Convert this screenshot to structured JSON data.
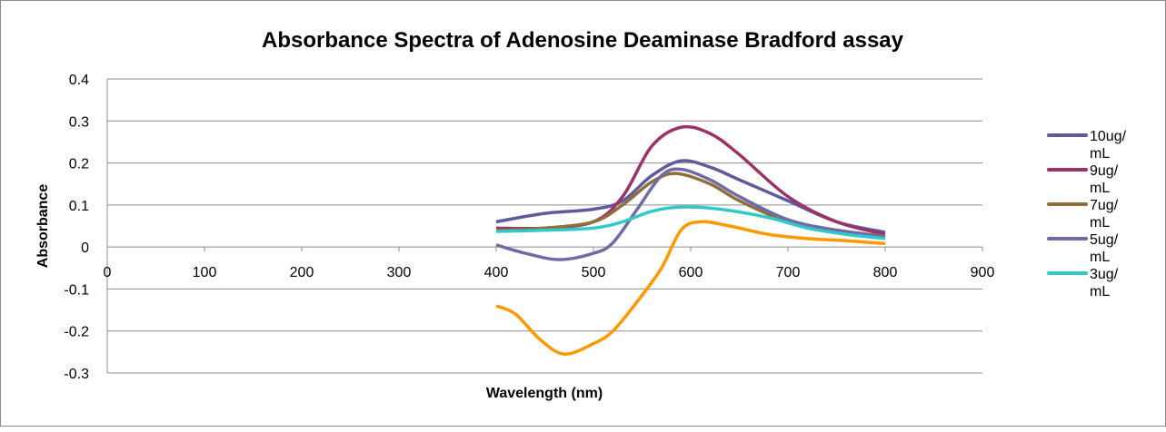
{
  "chart_data": {
    "type": "line",
    "title": "Absorbance Spectra of Adenosine Deaminase Bradford assay",
    "xlabel": "Wavelength (nm)",
    "ylabel": "Absorbance",
    "xlim": [
      0,
      900
    ],
    "ylim": [
      -0.3,
      0.4
    ],
    "xticks": [
      "0",
      "100",
      "200",
      "300",
      "400",
      "500",
      "600",
      "700",
      "800",
      "900"
    ],
    "xtick_values": [
      0,
      100,
      200,
      300,
      400,
      500,
      600,
      700,
      800,
      900
    ],
    "yticks": [
      "0.4",
      "0.3",
      "0.2",
      "0.1",
      "0",
      "-0.1",
      "-0.2",
      "-0.3"
    ],
    "ytick_values": [
      0.4,
      0.3,
      0.2,
      0.1,
      0,
      -0.1,
      -0.2,
      -0.3
    ],
    "grid": "horizontal",
    "legend_position": "right",
    "series": [
      {
        "name_line1": "10ug/",
        "name_line2": "mL",
        "in_legend": true,
        "color": "#5d5b9c",
        "x": [
          400,
          450,
          500,
          530,
          560,
          590,
          620,
          650,
          700,
          750,
          800
        ],
        "y": [
          0.06,
          0.08,
          0.09,
          0.11,
          0.17,
          0.205,
          0.19,
          0.16,
          0.11,
          0.06,
          0.035
        ]
      },
      {
        "name_line1": "9ug/",
        "name_line2": "mL",
        "in_legend": true,
        "color": "#9b3366",
        "x": [
          400,
          450,
          500,
          530,
          560,
          590,
          620,
          650,
          700,
          750,
          800
        ],
        "y": [
          0.045,
          0.045,
          0.06,
          0.12,
          0.24,
          0.285,
          0.27,
          0.22,
          0.12,
          0.06,
          0.03
        ]
      },
      {
        "name_line1": "7ug/",
        "name_line2": "mL",
        "in_legend": true,
        "color": "#8e6e3c",
        "x": [
          400,
          450,
          500,
          530,
          560,
          585,
          620,
          650,
          700,
          750,
          800
        ],
        "y": [
          0.04,
          0.045,
          0.06,
          0.1,
          0.155,
          0.175,
          0.15,
          0.11,
          0.06,
          0.04,
          0.025
        ]
      },
      {
        "name_line1": "5ug/",
        "name_line2": "mL",
        "in_legend": true,
        "color": "#6f6ba7",
        "x": [
          400,
          430,
          465,
          500,
          520,
          545,
          570,
          590,
          620,
          650,
          700,
          750,
          800
        ],
        "y": [
          0.005,
          -0.015,
          -0.03,
          -0.015,
          0.01,
          0.09,
          0.17,
          0.185,
          0.16,
          0.12,
          0.065,
          0.04,
          0.025
        ]
      },
      {
        "name_line1": "3ug/",
        "name_line2": "mL",
        "in_legend": true,
        "color": "#33c9c9",
        "x": [
          400,
          450,
          500,
          530,
          560,
          590,
          630,
          680,
          720,
          760,
          800
        ],
        "y": [
          0.037,
          0.04,
          0.045,
          0.06,
          0.085,
          0.095,
          0.09,
          0.07,
          0.045,
          0.03,
          0.02
        ]
      },
      {
        "in_legend": false,
        "color": "#ff9900",
        "x": [
          400,
          420,
          445,
          470,
          500,
          520,
          545,
          570,
          590,
          610,
          640,
          680,
          720,
          760,
          800
        ],
        "y": [
          -0.14,
          -0.16,
          -0.22,
          -0.255,
          -0.23,
          -0.2,
          -0.13,
          -0.05,
          0.04,
          0.06,
          0.05,
          0.03,
          0.02,
          0.015,
          0.008
        ]
      }
    ]
  }
}
